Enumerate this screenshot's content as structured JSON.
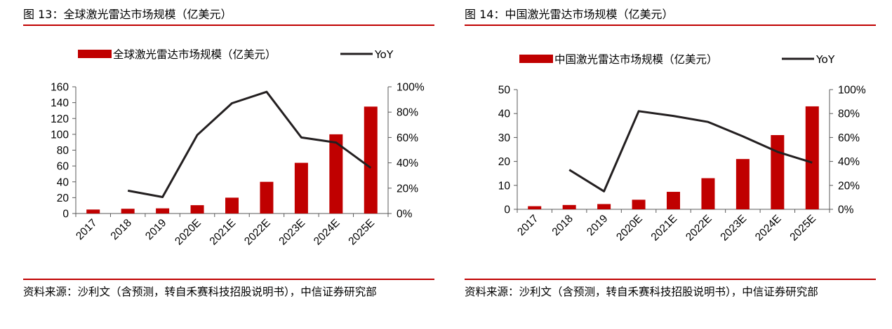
{
  "chart_data": [
    {
      "type": "bar",
      "title": "图 13：全球激光雷达市场规模（亿美元）",
      "categories": [
        "2017",
        "2018",
        "2019",
        "2020E",
        "2021E",
        "2022E",
        "2023E",
        "2024E",
        "2025E"
      ],
      "series": [
        {
          "name": "全球激光雷达市场规模（亿美元）",
          "type": "bar",
          "axis": "left",
          "color": "#c00000",
          "values": [
            5,
            6,
            6.5,
            10.5,
            20,
            40,
            64,
            100,
            135
          ]
        },
        {
          "name": "YoY",
          "type": "line",
          "axis": "right",
          "color": "#231f20",
          "values": [
            null,
            18,
            13,
            62,
            87,
            96,
            60,
            56,
            36
          ]
        }
      ],
      "ylim": [
        0,
        160
      ],
      "yticks": [
        0,
        20,
        40,
        60,
        80,
        100,
        120,
        140,
        160
      ],
      "y2lim": [
        0,
        100
      ],
      "y2ticks": [
        "0%",
        "20%",
        "40%",
        "60%",
        "80%",
        "100%"
      ],
      "legend": "top",
      "grid": false,
      "source": "资料来源：沙利文（含预测，转自禾赛科技招股说明书），中信证券研究部"
    },
    {
      "type": "bar",
      "title": "图 14：中国激光雷达市场规模（亿美元）",
      "categories": [
        "2017",
        "2018",
        "2019",
        "2020E",
        "2021E",
        "2022E",
        "2023E",
        "2024E",
        "2025E"
      ],
      "series": [
        {
          "name": "中国激光雷达市场规模（亿美元）",
          "type": "bar",
          "axis": "left",
          "color": "#c00000",
          "values": [
            1.3,
            1.8,
            2.2,
            4,
            7.3,
            13,
            21,
            31,
            43
          ]
        },
        {
          "name": "YoY",
          "type": "line",
          "axis": "right",
          "color": "#231f20",
          "values": [
            null,
            33,
            15,
            82,
            78,
            73,
            61,
            48,
            39
          ]
        }
      ],
      "ylim": [
        0,
        50
      ],
      "yticks": [
        0,
        10,
        20,
        30,
        40,
        50
      ],
      "y2lim": [
        0,
        100
      ],
      "y2ticks": [
        "0%",
        "20%",
        "40%",
        "60%",
        "80%",
        "100%"
      ],
      "legend": "top",
      "grid": false,
      "source": "资料来源：沙利文（含预测，转自禾赛科技招股说明书），中信证券研究部"
    }
  ]
}
